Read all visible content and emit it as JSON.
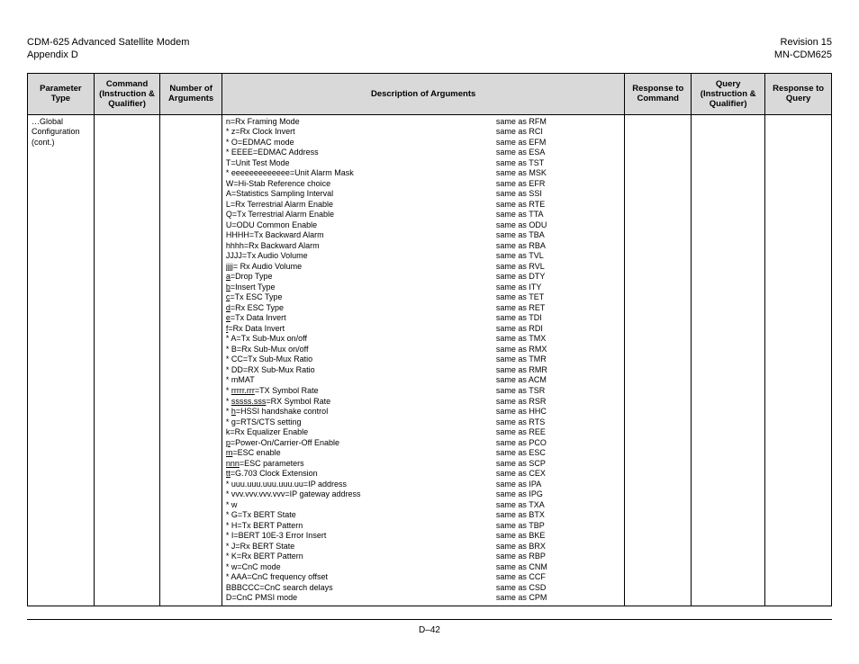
{
  "header": {
    "title_line1": "CDM-625 Advanced Satellite Modem",
    "title_line2": "Appendix D",
    "rev_line1": "Revision 15",
    "rev_line2": "MN-CDM625"
  },
  "columns": {
    "c1": "Parameter Type",
    "c2": "Command (Instruction & Qualifier)",
    "c3": "Number of Arguments",
    "c4": "Description of Arguments",
    "c5": "Response to Command",
    "c6": "Query (Instruction & Qualifier)",
    "c7": "Response to Query"
  },
  "param_type": "…Global Configuration (cont.)",
  "rows": [
    {
      "pre": "",
      "lt": "n=Rx Framing Mode",
      "ul": "",
      "rt": "same as RFM"
    },
    {
      "pre": "* ",
      "lt": "z=Rx Clock Invert",
      "ul": "",
      "rt": "same as RCI"
    },
    {
      "pre": "* ",
      "lt": "O=EDMAC mode",
      "ul": "",
      "rt": "same as EFM"
    },
    {
      "pre": "* ",
      "lt": "EEEE=EDMAC Address",
      "ul": "",
      "rt": "same as ESA"
    },
    {
      "pre": "",
      "lt": "T=Unit Test Mode",
      "ul": "",
      "rt": "same as TST"
    },
    {
      "pre": "* ",
      "lt": "eeeeeeeeeeeee=Unit Alarm Mask",
      "ul": "",
      "rt": "same as MSK"
    },
    {
      "pre": "",
      "lt": "W=Hi-Stab Reference choice",
      "ul": "",
      "rt": "same as EFR"
    },
    {
      "pre": "",
      "lt": "A=Statistics Sampling Interval",
      "ul": "",
      "rt": "same as SSI"
    },
    {
      "pre": "",
      "lt": "L=Rx Terrestrial Alarm Enable",
      "ul": "",
      "rt": "same as RTE"
    },
    {
      "pre": "",
      "lt": "Q=Tx Terrestrial Alarm Enable",
      "ul": "",
      "rt": "same as TTA"
    },
    {
      "pre": "",
      "lt": "U=ODU Common Enable",
      "ul": "",
      "rt": "same as ODU"
    },
    {
      "pre": "",
      "lt": "HHHH=Tx Backward Alarm",
      "ul": "",
      "rt": "same as TBA"
    },
    {
      "pre": "",
      "lt": "hhhh=Rx Backward Alarm",
      "ul": "",
      "rt": "same as RBA"
    },
    {
      "pre": "",
      "lt": "JJJJ=Tx Audio Volume",
      "ul": "",
      "rt": "same as TVL"
    },
    {
      "pre": "",
      "lt": "jjjj= Rx Audio Volume",
      "ul": "",
      "rt": "same as RVL"
    },
    {
      "pre": "",
      "lt": "=Drop Type",
      "ul": "a",
      "rt": "same as DTY"
    },
    {
      "pre": "",
      "lt": "=Insert Type",
      "ul": "b",
      "rt": "same as ITY"
    },
    {
      "pre": "",
      "lt": "=Tx ESC Type",
      "ul": "c",
      "rt": "same as TET"
    },
    {
      "pre": "",
      "lt": "=Rx ESC Type",
      "ul": "d",
      "rt": "same as RET"
    },
    {
      "pre": "",
      "lt": "=Tx Data Invert",
      "ul": "e",
      "rt": "same as TDI"
    },
    {
      "pre": "",
      "lt": "=Rx Data Invert",
      "ul": "f",
      "rt": "same as RDI"
    },
    {
      "pre": "* ",
      "lt": "A=Tx Sub-Mux on/off",
      "ul": "",
      "rt": "same as TMX"
    },
    {
      "pre": "* ",
      "lt": "B=Rx Sub-Mux on/off",
      "ul": "",
      "rt": "same as RMX"
    },
    {
      "pre": "* ",
      "lt": "CC=Tx Sub-Mux Ratio",
      "ul": "",
      "rt": "same as TMR"
    },
    {
      "pre": "* ",
      "lt": "DD=RX Sub-Mux Ratio",
      "ul": "",
      "rt": "same as RMR"
    },
    {
      "pre": "* ",
      "lt": "mMAT",
      "ul": "",
      "rt": "same as ACM"
    },
    {
      "pre": "* ",
      "lt": "=TX Symbol Rate",
      "ul": "rrrrr.rrr",
      "rt": "same as TSR"
    },
    {
      "pre": "* ",
      "lt": "=RX Symbol Rate",
      "ul": "sssss.sss",
      "rt": "same as RSR"
    },
    {
      "pre": "* ",
      "lt": "=HSSI handshake control",
      "ul": "h",
      "rt": "same as HHC"
    },
    {
      "pre": "* ",
      "lt": "=RTS/CTS setting",
      "ul": "g",
      "rt": "same as RTS"
    },
    {
      "pre": "",
      "lt": "k=Rx Equalizer Enable",
      "ul": "",
      "rt": "same as REE"
    },
    {
      "pre": "",
      "lt": "=Power-On/Carrier-Off Enable",
      "ul": "p",
      "rt": "same as PCO"
    },
    {
      "pre": "",
      "lt": "=ESC enable",
      "ul": "m",
      "rt": "same as ESC"
    },
    {
      "pre": "",
      "lt": "=ESC parameters",
      "ul": "nnn",
      "rt": "same as SCP"
    },
    {
      "pre": "",
      "lt": "=G.703 Clock Extension",
      "ul": "tt",
      "rt": "same as CEX"
    },
    {
      "pre": "* ",
      "lt": "uuu.uuu.uuu.uuu.uu=IP address",
      "ul": "",
      "rt": "same as IPA"
    },
    {
      "pre": "* ",
      "lt": "vvv.vvv.vvv.vvv=IP gateway address",
      "ul": "",
      "rt": "same as IPG"
    },
    {
      "pre": "* ",
      "lt": "w",
      "ul": "",
      "rt": "same as TXA"
    },
    {
      "pre": "* ",
      "lt": "G=Tx BERT State",
      "ul": "",
      "rt": "same as BTX"
    },
    {
      "pre": "* ",
      "lt": "H=Tx BERT Pattern",
      "ul": "",
      "rt": "same as TBP"
    },
    {
      "pre": "* ",
      "lt": "I=BERT 10E-3 Error Insert",
      "ul": "",
      "rt": "same as BKE"
    },
    {
      "pre": "* ",
      "lt": "J=Rx BERT State",
      "ul": "",
      "rt": "same as BRX"
    },
    {
      "pre": "* ",
      "lt": "K=Rx BERT Pattern",
      "ul": "",
      "rt": "same as RBP"
    },
    {
      "pre": "* ",
      "lt": "w=CnC mode",
      "ul": "",
      "rt": "same as CNM"
    },
    {
      "pre": "* ",
      "lt": "AAA=CnC frequency offset",
      "ul": "",
      "rt": "same as CCF"
    },
    {
      "pre": "",
      "lt": "BBBCCC=CnC search delays",
      "ul": "",
      "rt": "same as CSD"
    },
    {
      "pre": "",
      "lt": "D=CnC PMSI mode",
      "ul": "",
      "rt": "same as CPM"
    }
  ],
  "page_number": "D–42"
}
